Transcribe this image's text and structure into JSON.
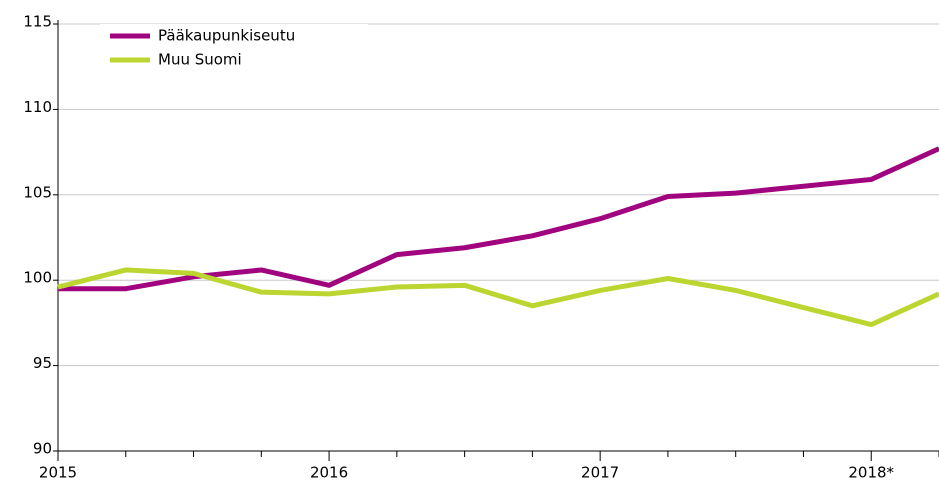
{
  "chart_data": {
    "type": "line",
    "categories": [
      "2015",
      null,
      null,
      null,
      "2016",
      null,
      null,
      null,
      "2017",
      null,
      null,
      null,
      "2018*",
      null
    ],
    "series": [
      {
        "name": "Pääkaupunkiseutu",
        "color": "#a0047f",
        "values": [
          99.5,
          99.5,
          100.2,
          100.6,
          99.7,
          101.5,
          101.9,
          102.6,
          103.6,
          104.9,
          105.1,
          105.5,
          105.9,
          107.7
        ]
      },
      {
        "name": "Muu Suomi",
        "color": "#bcd531",
        "values": [
          99.6,
          100.6,
          100.4,
          99.3,
          99.2,
          99.6,
          99.7,
          98.5,
          99.4,
          100.1,
          99.4,
          98.4,
          97.4,
          99.2
        ]
      }
    ],
    "ylim": [
      90,
      115
    ],
    "yticks": [
      90,
      95,
      100,
      105,
      110,
      115
    ],
    "grid": true,
    "legend": "upper left"
  }
}
